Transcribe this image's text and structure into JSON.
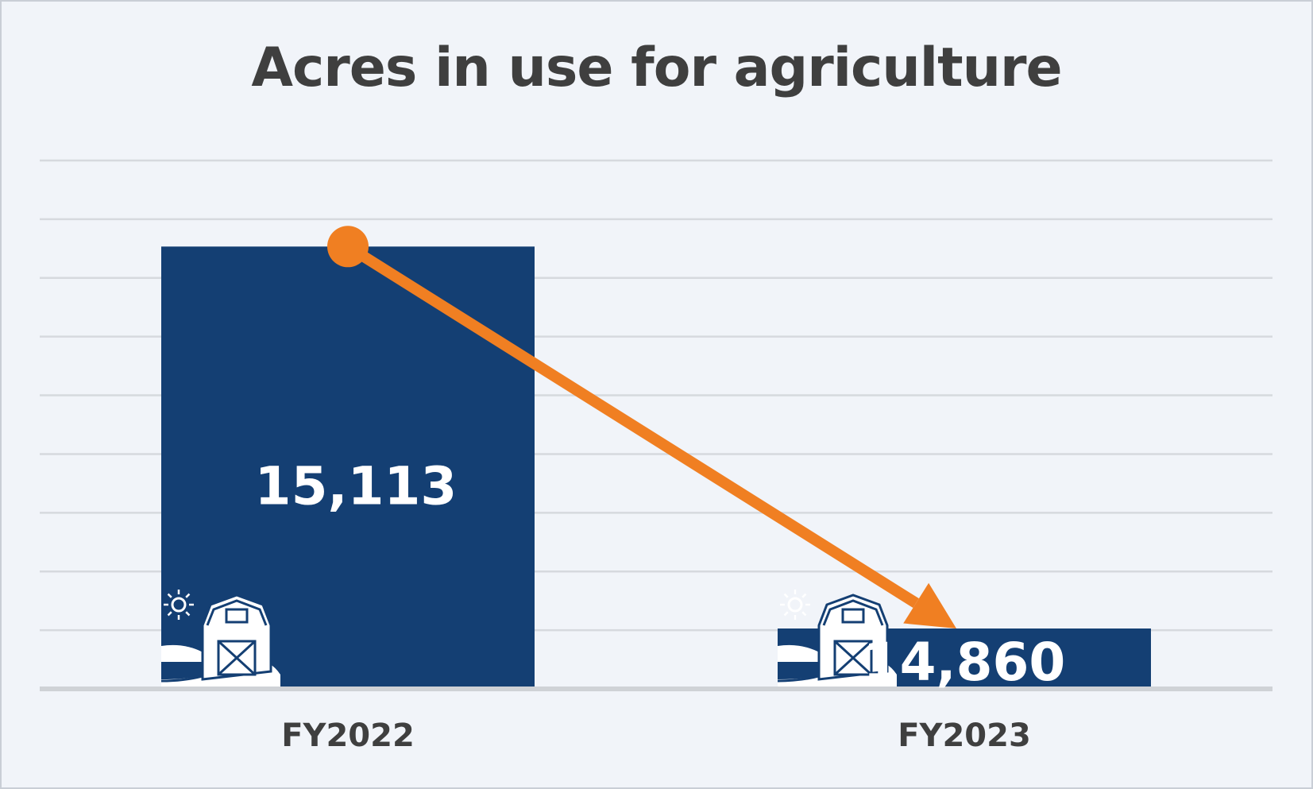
{
  "chart_data": {
    "type": "bar",
    "title": "Acres in use for agriculture",
    "categories": [
      "FY2022",
      "FY2023"
    ],
    "values": [
      15113,
      14860
    ],
    "value_labels": [
      "15,113",
      "14,860"
    ],
    "xlabel": "",
    "ylabel": "",
    "ylim": [
      14820,
      15170
    ],
    "grid": true,
    "legend": "none",
    "bar_color": "#143f73",
    "trend_arrow_color": "#f07f22",
    "gridline_color": "#d6d9de",
    "bar_icon": "barn-farm-icon"
  }
}
